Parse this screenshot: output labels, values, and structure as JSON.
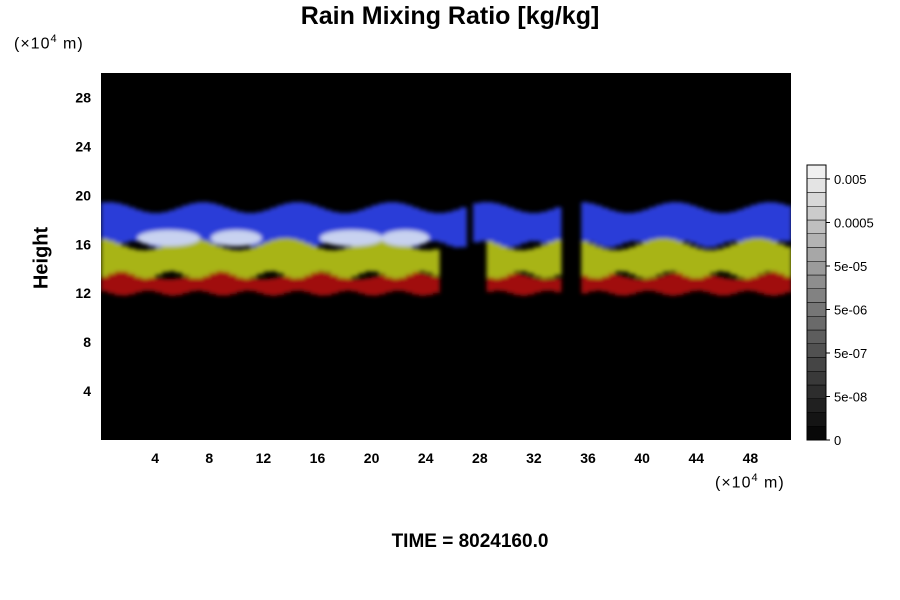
{
  "chart_data": {
    "type": "heatmap",
    "title": "Rain Mixing Ratio [kg/kg]",
    "ylabel": "Height",
    "xunit": {
      "prefix": "(×10",
      "exp": "4",
      "suffix": " m)"
    },
    "yunit": {
      "prefix": "(×10",
      "exp": "4",
      "suffix": " m)"
    },
    "xlim": [
      0,
      51
    ],
    "ylim": [
      0,
      30
    ],
    "xticks": [
      "4",
      "8",
      "12",
      "16",
      "20",
      "24",
      "28",
      "32",
      "36",
      "40",
      "44",
      "48"
    ],
    "yticks": [
      "4",
      "8",
      "12",
      "16",
      "20",
      "24",
      "28"
    ],
    "colorbar": {
      "tick_labels": [
        "0.005",
        "0.0005",
        "5e-05",
        "5e-06",
        "5e-07",
        "5e-08",
        "0"
      ],
      "levels": 20
    },
    "background_color": "#000000",
    "layers": [
      {
        "name": "top",
        "color": "#2a3cd8",
        "y_range": [
          16,
          19
        ]
      },
      {
        "name": "highlight",
        "color": "#c8d2f0",
        "y_range": [
          16,
          17
        ]
      },
      {
        "name": "middle",
        "color": "#a8b414",
        "y_range": [
          13.5,
          16
        ]
      },
      {
        "name": "base",
        "color": "#a01010",
        "y_range": [
          12,
          13.5
        ]
      }
    ]
  },
  "footer": {
    "time_label": "TIME = 8024160.0"
  }
}
